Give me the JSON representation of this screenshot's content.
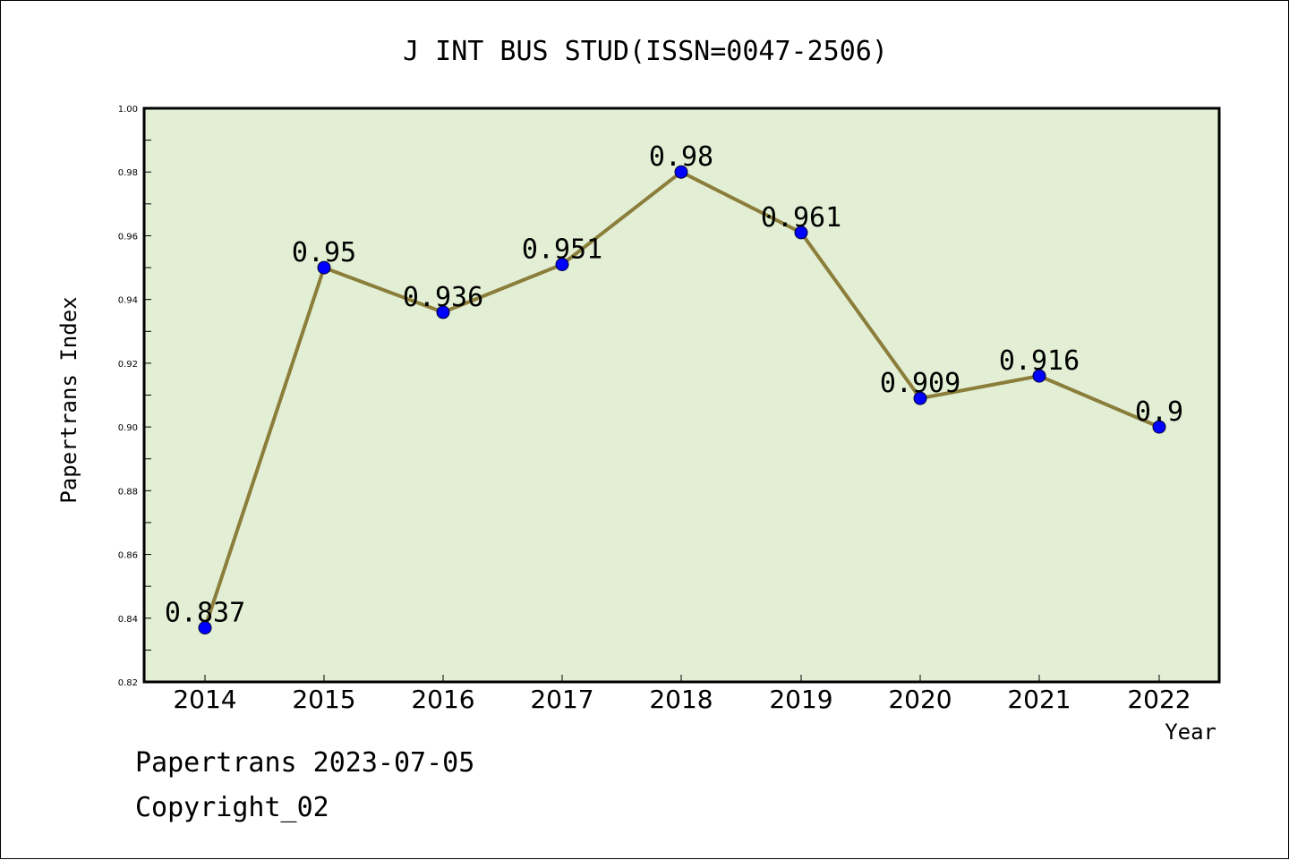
{
  "chart_data": {
    "type": "line",
    "title": "J INT BUS STUD(ISSN=0047-2506)",
    "xlabel": "Year",
    "ylabel": "Papertrans Index",
    "categories": [
      "2014",
      "2015",
      "2016",
      "2017",
      "2018",
      "2019",
      "2020",
      "2021",
      "2022"
    ],
    "series": [
      {
        "values": [
          0.837,
          0.95,
          0.936,
          0.951,
          0.98,
          0.961,
          0.909,
          0.916,
          0.9
        ]
      }
    ],
    "data_labels": [
      "0.837",
      "0.95",
      "0.936",
      "0.951",
      "0.98",
      "0.961",
      "0.909",
      "0.916",
      "0.9"
    ],
    "ylim": [
      0.82,
      1.0
    ],
    "yticks": [
      "0.82",
      "0.84",
      "0.86",
      "0.88",
      "0.90",
      "0.92",
      "0.94",
      "0.96",
      "0.98",
      "1.00"
    ],
    "grid": false,
    "colors": {
      "plot_background": "#e2efd4",
      "line": "#8b7d3a",
      "marker": "#0000ff"
    }
  },
  "footer": {
    "source_line": "Papertrans 2023-07-05",
    "copyright": "Copyright_02"
  }
}
